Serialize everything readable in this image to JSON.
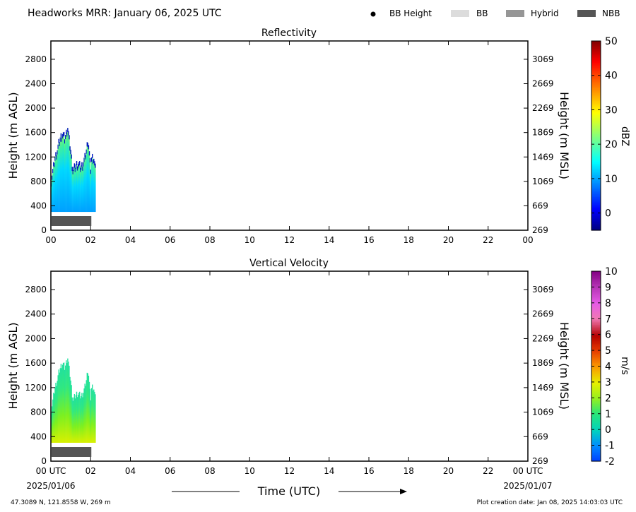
{
  "header": {
    "title": "Headworks MRR:  January 06, 2025 UTC"
  },
  "legend": {
    "items": [
      {
        "label": "BB Height",
        "marker": "dot",
        "color": "#000000"
      },
      {
        "label": "BB",
        "marker": "bar",
        "color": "#dcdcdc"
      },
      {
        "label": "Hybrid",
        "marker": "bar",
        "color": "#969696"
      },
      {
        "label": "NBB",
        "marker": "bar",
        "color": "#555555"
      }
    ]
  },
  "chart_data": [
    {
      "type": "heatmap",
      "title": "Reflectivity",
      "xlabel": "",
      "ylabel": "Height (m AGL)",
      "ylabel_right": "Height (m MSL)",
      "xlim": [
        0,
        24
      ],
      "ylim": [
        0,
        3100
      ],
      "x_ticks": [
        "00",
        "02",
        "04",
        "06",
        "08",
        "10",
        "12",
        "14",
        "16",
        "18",
        "20",
        "22",
        "00"
      ],
      "y_ticks": [
        0,
        400,
        800,
        1200,
        1600,
        2000,
        2400,
        2800
      ],
      "y_ticks_right": [
        269,
        669,
        1069,
        1469,
        1869,
        2269,
        2669,
        3069
      ],
      "colorbar": {
        "label": "dBZ",
        "range": [
          -5,
          50
        ],
        "ticks": [
          0,
          10,
          20,
          30,
          40,
          50
        ],
        "colormap": "jet"
      },
      "data_extent": {
        "time_start": 0.0,
        "time_end": 2.25,
        "height_base": 300
      },
      "echo_tops": [
        [
          0.0,
          800
        ],
        [
          0.1,
          1000
        ],
        [
          0.2,
          1200
        ],
        [
          0.3,
          1300
        ],
        [
          0.4,
          1450
        ],
        [
          0.5,
          1550
        ],
        [
          0.6,
          1600
        ],
        [
          0.7,
          1520
        ],
        [
          0.8,
          1650
        ],
        [
          0.85,
          1700
        ],
        [
          0.9,
          1550
        ],
        [
          1.0,
          1300
        ],
        [
          1.1,
          1000
        ],
        [
          1.2,
          1050
        ],
        [
          1.3,
          1100
        ],
        [
          1.4,
          1100
        ],
        [
          1.5,
          1050
        ],
        [
          1.6,
          1100
        ],
        [
          1.7,
          1200
        ],
        [
          1.8,
          1350
        ],
        [
          1.85,
          1500
        ],
        [
          1.9,
          1400
        ],
        [
          2.0,
          1000
        ],
        [
          2.05,
          1220
        ],
        [
          2.15,
          1200
        ],
        [
          2.25,
          1000
        ]
      ],
      "bands": [
        {
          "type": "NBB",
          "x": [
            0.0,
            2.0
          ]
        }
      ]
    },
    {
      "type": "heatmap",
      "title": "Vertical Velocity",
      "xlabel": "Time (UTC)",
      "ylabel": "Height (m AGL)",
      "ylabel_right": "Height (m MSL)",
      "xlim": [
        0,
        24
      ],
      "ylim": [
        0,
        3100
      ],
      "x_ticks": [
        "00 UTC",
        "02",
        "04",
        "06",
        "08",
        "10",
        "12",
        "14",
        "16",
        "18",
        "20",
        "22",
        "00 UTC"
      ],
      "date_labels": [
        "2025/01/06",
        "2025/01/07"
      ],
      "y_ticks": [
        0,
        400,
        800,
        1200,
        1600,
        2000,
        2400,
        2800
      ],
      "y_ticks_right": [
        269,
        669,
        1069,
        1469,
        1869,
        2269,
        2669,
        3069
      ],
      "colorbar": {
        "label": "m/s",
        "range": [
          -2,
          10
        ],
        "ticks": [
          -2,
          -1,
          0,
          1,
          2,
          3,
          4,
          5,
          6,
          7,
          8,
          9,
          10
        ],
        "colormap": "velocity"
      },
      "data_extent": {
        "time_start": 0.0,
        "time_end": 2.25,
        "height_base": 300
      },
      "echo_tops": [
        [
          0.0,
          800
        ],
        [
          0.1,
          1000
        ],
        [
          0.2,
          1200
        ],
        [
          0.3,
          1300
        ],
        [
          0.4,
          1450
        ],
        [
          0.5,
          1550
        ],
        [
          0.6,
          1600
        ],
        [
          0.7,
          1520
        ],
        [
          0.8,
          1650
        ],
        [
          0.85,
          1700
        ],
        [
          0.9,
          1550
        ],
        [
          1.0,
          1300
        ],
        [
          1.1,
          1000
        ],
        [
          1.2,
          1050
        ],
        [
          1.3,
          1100
        ],
        [
          1.4,
          1100
        ],
        [
          1.5,
          1050
        ],
        [
          1.6,
          1100
        ],
        [
          1.7,
          1200
        ],
        [
          1.8,
          1350
        ],
        [
          1.85,
          1500
        ],
        [
          1.9,
          1400
        ],
        [
          2.0,
          1000
        ],
        [
          2.05,
          1220
        ],
        [
          2.15,
          1200
        ],
        [
          2.25,
          1000
        ]
      ],
      "bands": [
        {
          "type": "NBB",
          "x": [
            0.0,
            2.0
          ]
        }
      ]
    }
  ],
  "footer": {
    "location": "47.3089 N, 121.8558 W, 269 m",
    "creation": "Plot creation date: Jan 08, 2025 14:03:03 UTC"
  }
}
